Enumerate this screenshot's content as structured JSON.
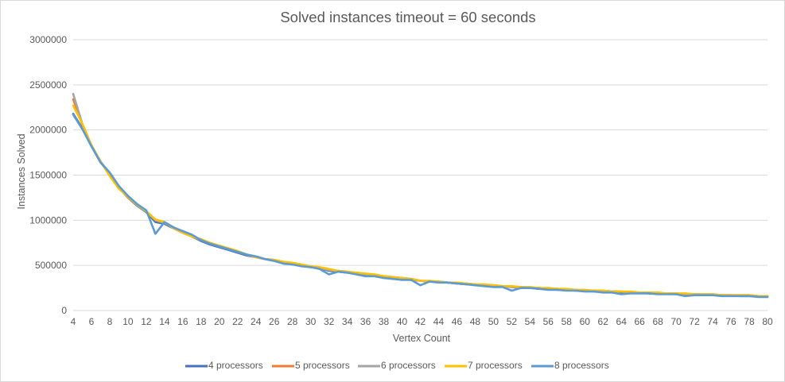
{
  "chart_data": {
    "type": "line",
    "title": "Solved instances timeout = 60 seconds",
    "xlabel": "Vertex Count",
    "ylabel": "Instances Solved",
    "ylim": [
      0,
      3000000
    ],
    "yticks": [
      "0",
      "500000",
      "1000000",
      "1500000",
      "2000000",
      "2500000",
      "3000000"
    ],
    "xlim": [
      4,
      80
    ],
    "xticks": [
      "4",
      "6",
      "8",
      "10",
      "12",
      "14",
      "16",
      "18",
      "20",
      "22",
      "24",
      "26",
      "28",
      "30",
      "32",
      "34",
      "36",
      "38",
      "40",
      "42",
      "44",
      "46",
      "48",
      "50",
      "52",
      "54",
      "56",
      "58",
      "60",
      "62",
      "64",
      "66",
      "68",
      "70",
      "72",
      "74",
      "76",
      "78",
      "80"
    ],
    "grid": true,
    "legend_position": "bottom",
    "x": [
      4,
      5,
      6,
      7,
      8,
      9,
      10,
      11,
      12,
      13,
      14,
      15,
      16,
      17,
      18,
      19,
      20,
      21,
      22,
      23,
      24,
      25,
      26,
      27,
      28,
      29,
      30,
      31,
      32,
      33,
      34,
      35,
      36,
      37,
      38,
      39,
      40,
      41,
      42,
      43,
      44,
      45,
      46,
      47,
      48,
      49,
      50,
      51,
      52,
      53,
      54,
      55,
      56,
      57,
      58,
      59,
      60,
      61,
      62,
      63,
      64,
      65,
      66,
      67,
      68,
      69,
      70,
      71,
      72,
      73,
      74,
      75,
      76,
      77,
      78,
      79,
      80
    ],
    "series": [
      {
        "name": "4 processors",
        "color": "#4472c4",
        "values": [
          2180000,
          2020000,
          1820000,
          1640000,
          1520000,
          1360000,
          1250000,
          1160000,
          1090000,
          980000,
          960000,
          910000,
          860000,
          820000,
          770000,
          730000,
          700000,
          670000,
          640000,
          610000,
          590000,
          570000,
          550000,
          530000,
          510000,
          500000,
          480000,
          470000,
          440000,
          430000,
          420000,
          410000,
          400000,
          390000,
          370000,
          360000,
          350000,
          340000,
          330000,
          320000,
          320000,
          310000,
          300000,
          290000,
          290000,
          280000,
          270000,
          270000,
          260000,
          250000,
          250000,
          240000,
          240000,
          230000,
          230000,
          220000,
          220000,
          220000,
          210000,
          210000,
          200000,
          200000,
          200000,
          190000,
          190000,
          190000,
          180000,
          180000,
          180000,
          170000,
          170000,
          170000,
          170000,
          160000,
          160000,
          160000,
          160000
        ]
      },
      {
        "name": "5 processors",
        "color": "#ed7d31",
        "values": [
          2340000,
          2060000,
          1830000,
          1650000,
          1510000,
          1360000,
          1250000,
          1170000,
          1100000,
          1000000,
          970000,
          920000,
          870000,
          820000,
          780000,
          740000,
          710000,
          680000,
          650000,
          620000,
          590000,
          570000,
          560000,
          540000,
          520000,
          500000,
          490000,
          470000,
          450000,
          440000,
          430000,
          410000,
          400000,
          390000,
          380000,
          370000,
          360000,
          350000,
          330000,
          320000,
          320000,
          310000,
          300000,
          300000,
          290000,
          280000,
          280000,
          270000,
          260000,
          260000,
          250000,
          250000,
          240000,
          240000,
          230000,
          230000,
          220000,
          220000,
          220000,
          210000,
          210000,
          200000,
          200000,
          200000,
          190000,
          190000,
          190000,
          180000,
          180000,
          180000,
          180000,
          170000,
          170000,
          170000,
          170000,
          160000,
          160000
        ]
      },
      {
        "name": "6 processors",
        "color": "#a5a5a5",
        "values": [
          2400000,
          2070000,
          1830000,
          1650000,
          1510000,
          1360000,
          1260000,
          1170000,
          1100000,
          1000000,
          970000,
          920000,
          870000,
          830000,
          780000,
          740000,
          710000,
          680000,
          650000,
          620000,
          590000,
          570000,
          560000,
          540000,
          520000,
          500000,
          490000,
          470000,
          450000,
          440000,
          430000,
          410000,
          400000,
          390000,
          380000,
          370000,
          360000,
          350000,
          330000,
          320000,
          320000,
          310000,
          300000,
          300000,
          290000,
          280000,
          280000,
          270000,
          260000,
          260000,
          250000,
          250000,
          240000,
          240000,
          230000,
          230000,
          220000,
          220000,
          220000,
          210000,
          210000,
          200000,
          200000,
          200000,
          190000,
          190000,
          190000,
          180000,
          180000,
          180000,
          180000,
          170000,
          170000,
          170000,
          170000,
          160000,
          160000
        ]
      },
      {
        "name": "7 processors",
        "color": "#ffc000",
        "values": [
          2270000,
          2070000,
          1830000,
          1650000,
          1490000,
          1350000,
          1260000,
          1170000,
          1100000,
          1010000,
          980000,
          910000,
          860000,
          820000,
          790000,
          750000,
          720000,
          690000,
          660000,
          620000,
          590000,
          570000,
          560000,
          540000,
          530000,
          510000,
          490000,
          480000,
          460000,
          440000,
          430000,
          420000,
          410000,
          400000,
          380000,
          370000,
          360000,
          350000,
          330000,
          330000,
          320000,
          310000,
          310000,
          300000,
          290000,
          290000,
          280000,
          270000,
          270000,
          260000,
          260000,
          250000,
          250000,
          240000,
          240000,
          230000,
          230000,
          220000,
          220000,
          210000,
          210000,
          210000,
          200000,
          200000,
          200000,
          190000,
          190000,
          190000,
          180000,
          180000,
          180000,
          170000,
          170000,
          170000,
          170000,
          160000,
          160000
        ]
      },
      {
        "name": "8 processors",
        "color": "#5b9bd5",
        "values": [
          2170000,
          2010000,
          1820000,
          1640000,
          1530000,
          1380000,
          1270000,
          1180000,
          1110000,
          850000,
          980000,
          920000,
          880000,
          840000,
          780000,
          740000,
          710000,
          680000,
          650000,
          620000,
          600000,
          570000,
          550000,
          520000,
          510000,
          490000,
          480000,
          460000,
          400000,
          430000,
          420000,
          400000,
          380000,
          380000,
          360000,
          350000,
          340000,
          340000,
          280000,
          320000,
          310000,
          310000,
          300000,
          290000,
          280000,
          270000,
          260000,
          260000,
          220000,
          250000,
          250000,
          240000,
          230000,
          230000,
          220000,
          220000,
          210000,
          210000,
          200000,
          200000,
          180000,
          190000,
          190000,
          190000,
          180000,
          180000,
          180000,
          160000,
          170000,
          170000,
          170000,
          160000,
          160000,
          160000,
          160000,
          150000,
          150000
        ]
      }
    ]
  }
}
